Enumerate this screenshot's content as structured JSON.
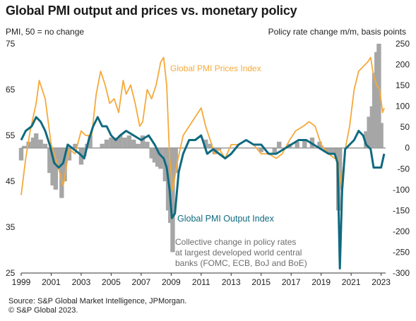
{
  "title": "Global PMI output and prices vs. monetary policy",
  "left_axis_note": "PMI, 50 = no change",
  "right_axis_note": "Policy rate change m/m, basis points",
  "source_line1": "Source: S&P Global Market Intelligence, JPMorgan.",
  "source_line2": "© S&P Global 2023.",
  "colors": {
    "prices": "#f5a93a",
    "output": "#0f6a7f",
    "bars": "#a6a6a6",
    "zero_line": "#9a9a9a",
    "annotation": "#6d6d6d"
  },
  "chart_data": {
    "type": "line",
    "x_ticks": [
      "1999",
      "2001",
      "2003",
      "2005",
      "2007",
      "2009",
      "2011",
      "2013",
      "2015",
      "2017",
      "2019",
      "2021",
      "2023"
    ],
    "x_range": [
      1999,
      2023.3
    ],
    "left_axis": {
      "ticks": [
        "75",
        "65",
        "55",
        "45",
        "35",
        "25"
      ],
      "range": [
        25,
        75
      ]
    },
    "right_axis": {
      "ticks": [
        "250",
        "200",
        "150",
        "100",
        "50",
        "0",
        "-50",
        "-100",
        "-150",
        "-200",
        "-250",
        "-300"
      ],
      "range": [
        -300,
        250
      ]
    },
    "annotations": {
      "prices": "Global  PMI Prices Index",
      "output": "Global  PMI Output  Index",
      "bars": [
        "Collective  change in policy rates",
        "at largest developed  world central",
        "banks (FOMC, ECB, BoJ and BoE)"
      ]
    },
    "series": [
      {
        "name": "Global  PMI Prices Index",
        "axis": "left",
        "x": [
          1999.0,
          1999.3,
          1999.6,
          2000.0,
          2000.2,
          2000.6,
          2001.0,
          2001.4,
          2001.8,
          2002.2,
          2002.6,
          2003.0,
          2003.3,
          2003.7,
          2004.0,
          2004.3,
          2004.6,
          2004.9,
          2005.2,
          2005.5,
          2005.8,
          2006.0,
          2006.3,
          2006.6,
          2006.9,
          2007.1,
          2007.4,
          2007.7,
          2008.0,
          2008.3,
          2008.5,
          2008.7,
          2008.9,
          2009.1,
          2009.4,
          2009.8,
          2010.2,
          2010.6,
          2011.0,
          2011.3,
          2011.6,
          2011.9,
          2012.2,
          2012.6,
          2013.0,
          2013.5,
          2014.0,
          2014.5,
          2015.0,
          2015.5,
          2016.0,
          2016.4,
          2016.9,
          2017.3,
          2017.8,
          2018.2,
          2018.6,
          2019.0,
          2019.5,
          2019.9,
          2020.1,
          2020.35,
          2020.6,
          2020.9,
          2021.2,
          2021.5,
          2021.8,
          2022.1,
          2022.3,
          2022.5,
          2022.7,
          2022.9,
          2023.1,
          2023.2
        ],
        "y": [
          42,
          50,
          56,
          62,
          67,
          63,
          53,
          49,
          44,
          52,
          51,
          56,
          55,
          55,
          64,
          69,
          66,
          62,
          63,
          60,
          67,
          64,
          66,
          62,
          57,
          58,
          65,
          63,
          66,
          71,
          72,
          66,
          50,
          43,
          49,
          55,
          57,
          59,
          61,
          57,
          54,
          51,
          52,
          50,
          53,
          53,
          54,
          53,
          51,
          51,
          50,
          51,
          54,
          56,
          57,
          58,
          57,
          53,
          51,
          50,
          50,
          44,
          52,
          57,
          65,
          69,
          70,
          71,
          72,
          68,
          66,
          65,
          60,
          61
        ]
      },
      {
        "name": "Global  PMI Output  Index",
        "axis": "left",
        "x": [
          1999.0,
          1999.3,
          1999.7,
          2000.0,
          2000.3,
          2000.6,
          2000.9,
          2001.2,
          2001.5,
          2001.8,
          2002.1,
          2002.5,
          2002.9,
          2003.2,
          2003.5,
          2003.8,
          2004.1,
          2004.4,
          2004.7,
          2005.0,
          2005.3,
          2005.6,
          2006.0,
          2006.5,
          2007.0,
          2007.5,
          2007.9,
          2008.2,
          2008.5,
          2008.7,
          2008.9,
          2009.05,
          2009.25,
          2009.5,
          2009.8,
          2010.2,
          2010.6,
          2011.0,
          2011.4,
          2011.8,
          2012.2,
          2012.6,
          2013.0,
          2013.5,
          2014.0,
          2014.5,
          2015.0,
          2015.5,
          2016.0,
          2016.5,
          2017.0,
          2017.5,
          2018.0,
          2018.5,
          2019.0,
          2019.5,
          2019.9,
          2020.1,
          2020.25,
          2020.4,
          2020.6,
          2020.9,
          2021.2,
          2021.5,
          2021.8,
          2022.0,
          2022.3,
          2022.5,
          2022.7,
          2022.9,
          2023.0,
          2023.2
        ],
        "y": [
          54,
          56,
          57,
          59,
          58,
          56,
          53,
          49,
          48,
          49,
          53,
          52,
          51,
          50,
          54,
          57,
          59,
          57,
          57,
          55,
          54,
          55,
          56,
          55,
          54,
          55,
          53,
          51,
          50,
          48,
          43,
          37,
          38,
          47,
          51,
          54,
          54,
          55,
          51,
          52,
          51,
          50,
          51,
          53,
          54,
          53,
          53,
          51,
          51,
          52,
          53,
          54,
          54,
          53,
          52,
          51,
          51,
          49,
          26,
          43,
          52,
          53,
          54,
          56,
          55,
          53,
          52,
          48,
          48,
          48,
          48,
          51
        ]
      },
      {
        "name": "Collective  change in policy rates",
        "axis": "right",
        "type": "bar",
        "x": [
          1999.0,
          1999.2,
          1999.5,
          1999.8,
          2000.0,
          2000.3,
          2000.6,
          2000.9,
          2001.1,
          2001.3,
          2001.5,
          2001.7,
          2001.9,
          2002.2,
          2002.6,
          2003.0,
          2003.2,
          2003.4,
          2003.6,
          2004.4,
          2004.7,
          2005.0,
          2005.3,
          2005.6,
          2005.9,
          2006.2,
          2006.5,
          2006.8,
          2007.1,
          2007.4,
          2007.7,
          2007.9,
          2008.1,
          2008.3,
          2008.6,
          2008.8,
          2008.95,
          2009.1,
          2009.3,
          2011.3,
          2011.6,
          2011.9,
          2012.2,
          2015.0,
          2015.9,
          2016.2,
          2016.9,
          2017.4,
          2017.9,
          2018.4,
          2018.9,
          2019.3,
          2019.6,
          2019.9,
          2020.15,
          2020.25,
          2022.0,
          2022.2,
          2022.4,
          2022.55,
          2022.7,
          2022.85,
          2023.0
        ],
        "values": [
          -30,
          5,
          15,
          25,
          35,
          20,
          10,
          -60,
          -90,
          -100,
          -50,
          -120,
          -80,
          -30,
          10,
          -40,
          -20,
          10,
          30,
          10,
          20,
          25,
          25,
          30,
          25,
          30,
          20,
          10,
          30,
          15,
          -25,
          -35,
          -45,
          -50,
          -80,
          -150,
          -180,
          -250,
          -60,
          20,
          10,
          -15,
          -5,
          -10,
          -15,
          15,
          10,
          15,
          20,
          25,
          15,
          -10,
          -15,
          -15,
          -150,
          -100,
          40,
          75,
          100,
          180,
          230,
          250,
          60
        ]
      }
    ]
  }
}
